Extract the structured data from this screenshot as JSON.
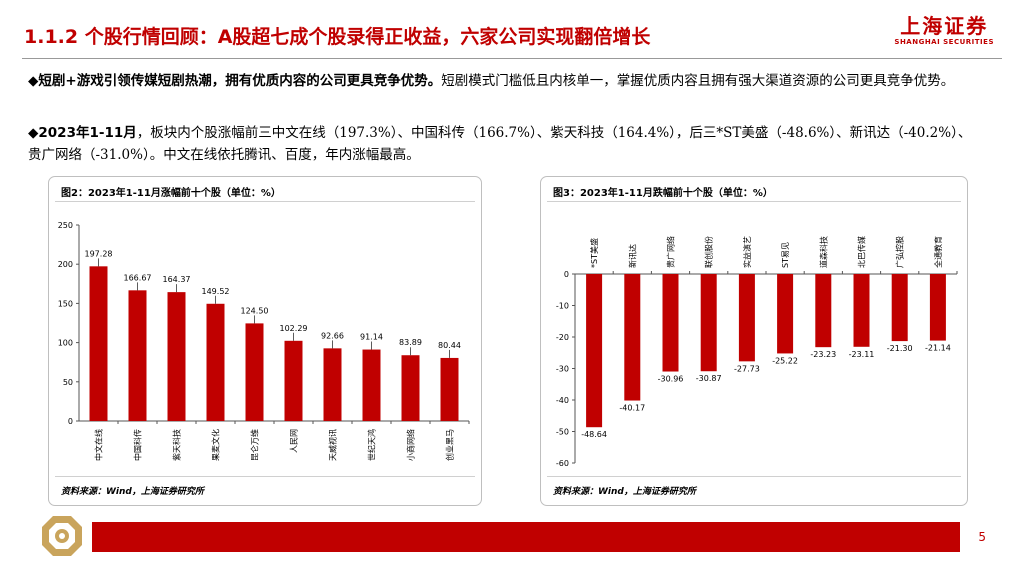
{
  "header": {
    "title": "1.1.2 个股行情回顾：A股超七成个股录得正收益，六家公司实现翻倍增长",
    "logo_cn": "上海证券",
    "logo_en": "SHANGHAI SECURITIES"
  },
  "paragraphs": [
    {
      "bullet": "◆",
      "bold": "短剧+游戏引领传媒短剧热潮，拥有优质内容的公司更具竞争优势。",
      "text": "短剧模式门槛低且内核单一，掌握优质内容且拥有强大渠道资源的公司更具竞争优势。"
    },
    {
      "bullet": "◆",
      "bold": "2023年1-11月",
      "text": "，板块内个股涨幅前三中文在线（197.3%）、中国科传（166.7%）、紫天科技（164.4%），后三*ST美盛（-48.6%）、新讯达（-40.2%）、贵广网络（-31.0%）。中文在线依托腾讯、百度，年内涨幅最高。"
    }
  ],
  "chart_left": {
    "title": "图2：2023年1-11月涨幅前十个股（单位：%）",
    "source": "资料来源：Wind，上海证券研究所"
  },
  "chart_right": {
    "title": "图3：2023年1-11月跌幅前十个股（单位：%）",
    "source": "资料来源：Wind，上海证券研究所"
  },
  "chart_data": [
    {
      "type": "bar",
      "title": "图2：2023年1-11月涨幅前十个股（单位：%）",
      "categories": [
        "中文在线",
        "中国科传",
        "紫天科技",
        "果麦文化",
        "昆仑万维",
        "人民网",
        "天威视讯",
        "世纪天鸿",
        "小商网络",
        "创业黑马"
      ],
      "values": [
        197.28,
        166.67,
        164.37,
        149.52,
        124.5,
        102.29,
        92.66,
        91.14,
        83.89,
        80.44
      ],
      "value_labels": [
        "197.28",
        "166.67",
        "164.37",
        "149.52",
        "124.50",
        "102.29",
        "92.66",
        "91.14",
        "83.89",
        "80.44"
      ],
      "ylim": [
        0,
        250
      ],
      "yticks": [
        "0",
        "50",
        "100",
        "150",
        "200",
        "250"
      ],
      "color": "#c00000"
    },
    {
      "type": "bar",
      "title": "图3：2023年1-11月跌幅前十个股（单位：%）",
      "categories": [
        "*ST美盛",
        "新讯达",
        "贵广网络",
        "联创股份",
        "实益演艺",
        "ST易见",
        "道森科技",
        "北巴传媒",
        "广弘控股",
        "全通教育"
      ],
      "values": [
        -48.64,
        -40.17,
        -30.96,
        -30.87,
        -27.73,
        -25.22,
        -23.23,
        -23.11,
        -21.3,
        -21.14
      ],
      "value_labels": [
        "-48.64",
        "-40.17",
        "-30.96",
        "-30.87",
        "-27.73",
        "-25.22",
        "-23.23",
        "-23.11",
        "-21.30",
        "-21.14"
      ],
      "ylim": [
        -60,
        0
      ],
      "yticks": [
        "0",
        "-10",
        "-20",
        "-30",
        "-40",
        "-50",
        "-60"
      ],
      "color": "#c00000"
    }
  ],
  "footer": {
    "page_number": "5"
  }
}
